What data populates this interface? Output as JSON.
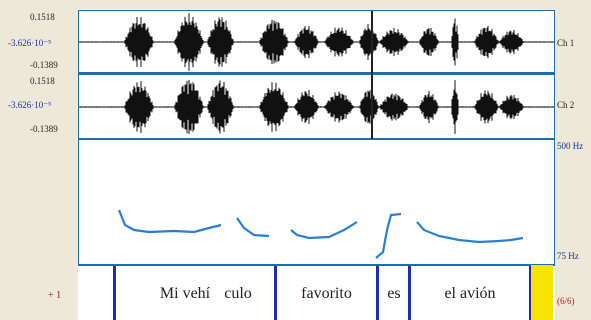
{
  "channels": [
    {
      "max_label": "0.1518",
      "mid_label": "-3.626·10⁻⁵",
      "min_label": "-0.1389",
      "name": "Ch 1"
    },
    {
      "max_label": "0.1518",
      "mid_label": "-3.626·10⁻⁵",
      "min_label": "-0.1389",
      "name": "Ch 2"
    }
  ],
  "pitch": {
    "top_label": "500 Hz",
    "bottom_label": "75 Hz"
  },
  "tier": {
    "number_label": "+ 1",
    "count_label": "(6/6)",
    "intervals": [
      {
        "text": ""
      },
      {
        "text": "Mi vehí"
      },
      {
        "text": "culo"
      },
      {
        "text": "favorito"
      },
      {
        "text": "es"
      },
      {
        "text": "el avión"
      },
      {
        "text": ""
      }
    ]
  },
  "colors": {
    "waveform": "#111111",
    "pitch_curve": "#2a7fd4",
    "boundary": "#1f2ea8",
    "panel_border": "#1e6fa8",
    "selection": "#f5e300"
  }
}
